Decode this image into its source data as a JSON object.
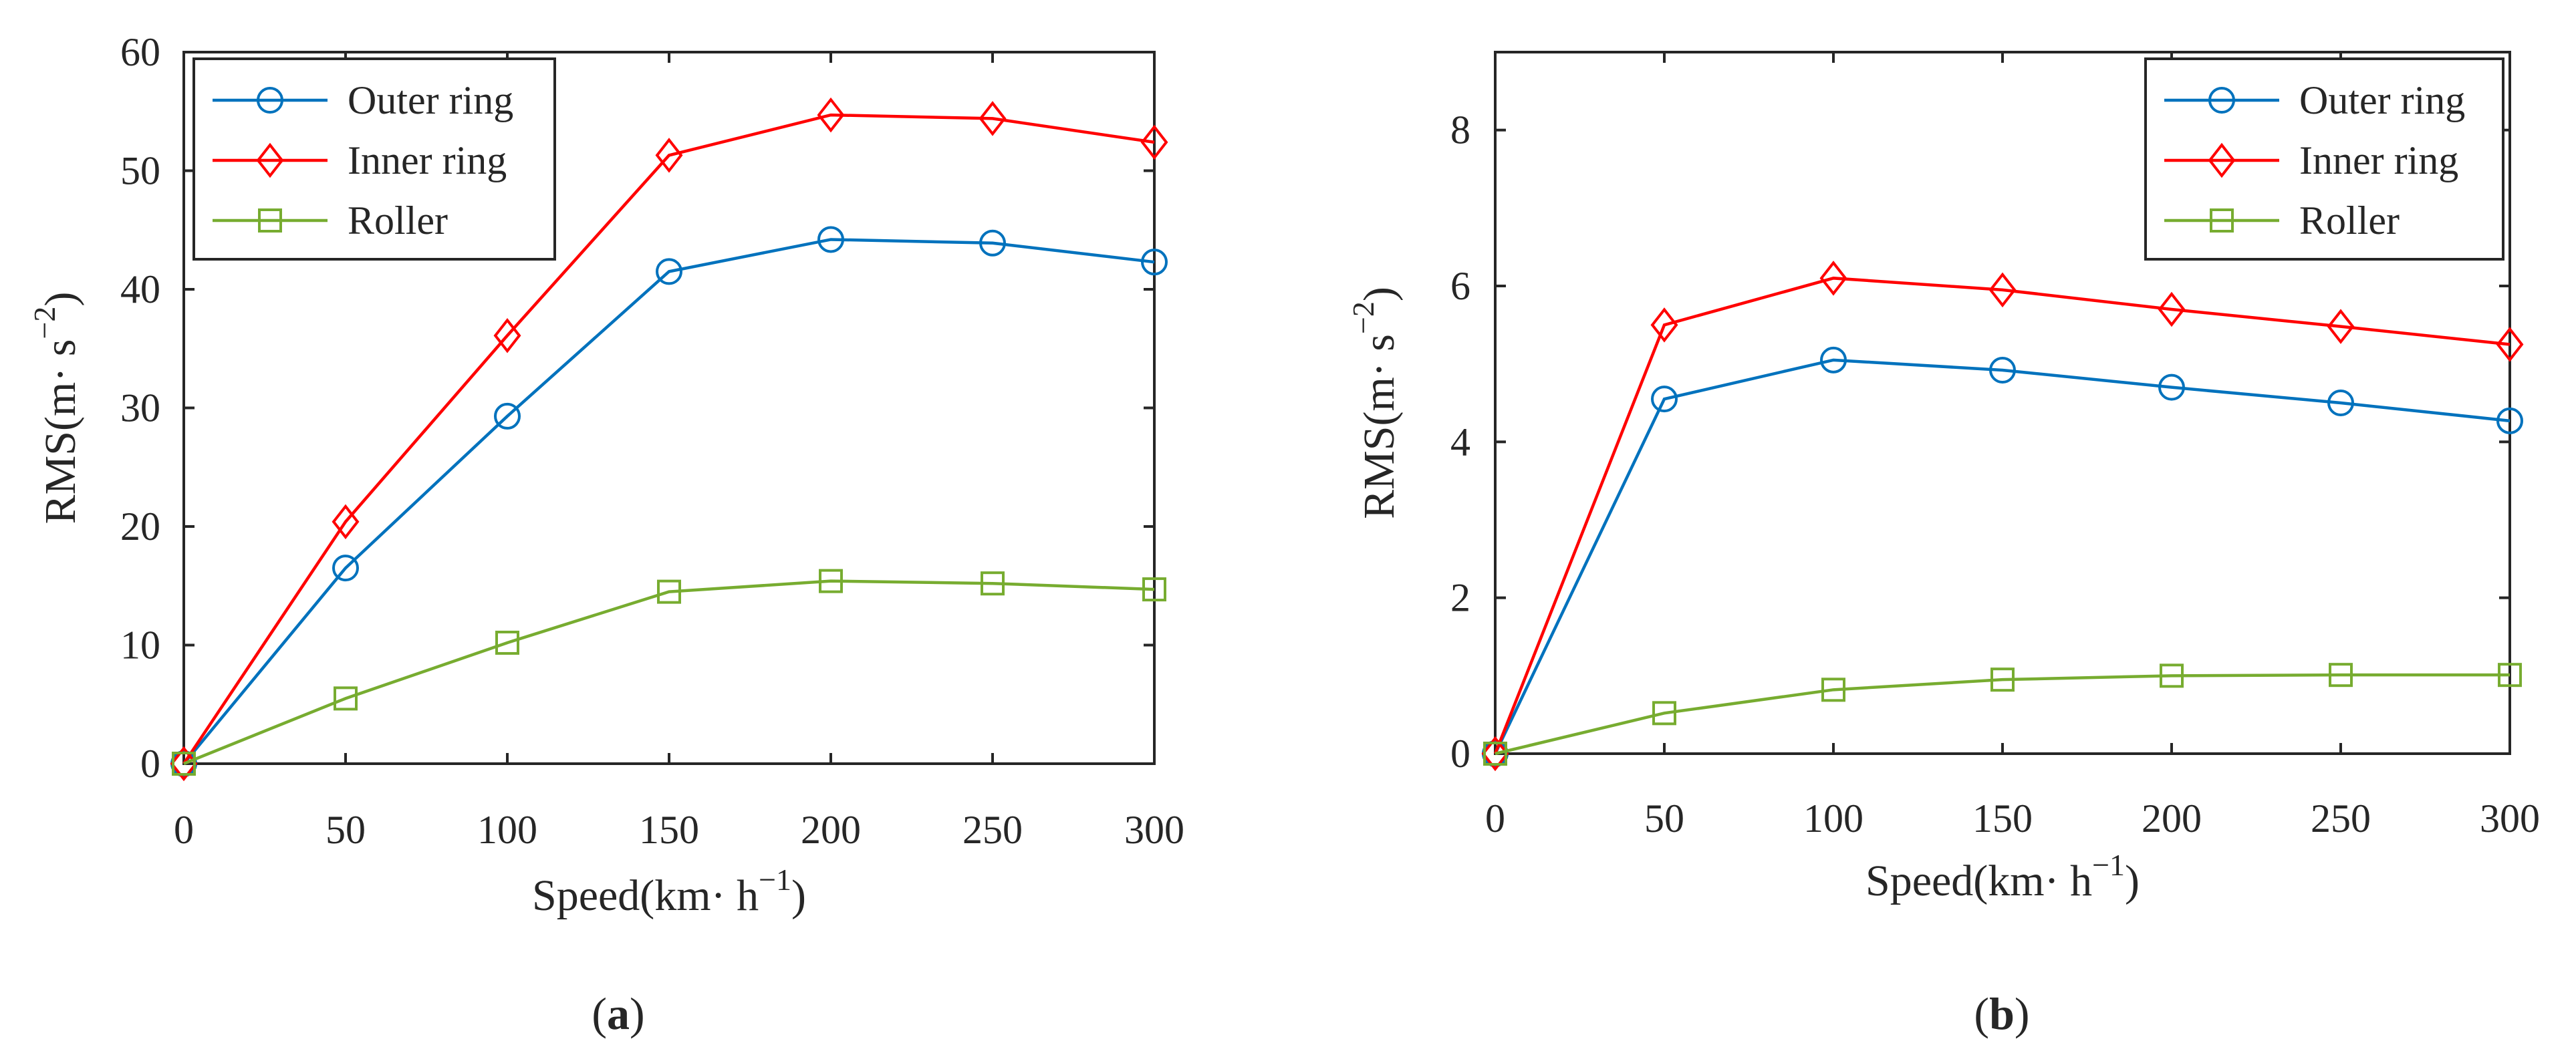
{
  "chart_data": [
    {
      "type": "line",
      "panel_label": "a",
      "xlabel": "Speed(km· h",
      "xlabel_sup": "−1",
      "xlabel_close": ")",
      "ylabel": "RMS(m· s",
      "ylabel_sup": "−2",
      "ylabel_close": ")",
      "xlim": [
        0,
        300
      ],
      "ylim": [
        0,
        60
      ],
      "xticks": [
        0,
        50,
        100,
        150,
        200,
        250,
        300
      ],
      "yticks": [
        0,
        10,
        20,
        30,
        40,
        50,
        60
      ],
      "x": [
        0,
        50,
        100,
        150,
        200,
        250,
        300
      ],
      "legend_position": "top-left",
      "series": [
        {
          "name": "Outer ring",
          "marker": "circle",
          "color": "#0072BD",
          "values": [
            0,
            16.5,
            29.3,
            41.5,
            44.2,
            43.9,
            42.3
          ]
        },
        {
          "name": "Inner ring",
          "marker": "diamond",
          "color": "#FF0000",
          "values": [
            0,
            20.4,
            36.1,
            51.3,
            54.7,
            54.4,
            52.4
          ]
        },
        {
          "name": "Roller",
          "marker": "square",
          "color": "#77AC30",
          "values": [
            0,
            5.5,
            10.2,
            14.5,
            15.4,
            15.2,
            14.7
          ]
        }
      ]
    },
    {
      "type": "line",
      "panel_label": "b",
      "xlabel": "Speed(km· h",
      "xlabel_sup": "−1",
      "xlabel_close": ")",
      "ylabel": "RMS(m· s",
      "ylabel_sup": "−2",
      "ylabel_close": ")",
      "xlim": [
        0,
        300
      ],
      "ylim": [
        0,
        9
      ],
      "xticks": [
        0,
        50,
        100,
        150,
        200,
        250,
        300
      ],
      "yticks": [
        0,
        2,
        4,
        6,
        8
      ],
      "x": [
        0,
        50,
        100,
        150,
        200,
        250,
        300
      ],
      "legend_position": "top-right",
      "series": [
        {
          "name": "Outer ring",
          "marker": "circle",
          "color": "#0072BD",
          "values": [
            0,
            4.55,
            5.05,
            4.92,
            4.7,
            4.5,
            4.27
          ]
        },
        {
          "name": "Inner ring",
          "marker": "diamond",
          "color": "#FF0000",
          "values": [
            0,
            5.5,
            6.1,
            5.95,
            5.7,
            5.48,
            5.25
          ]
        },
        {
          "name": "Roller",
          "marker": "square",
          "color": "#77AC30",
          "values": [
            0,
            0.52,
            0.82,
            0.95,
            1.0,
            1.01,
            1.01
          ]
        }
      ]
    }
  ]
}
